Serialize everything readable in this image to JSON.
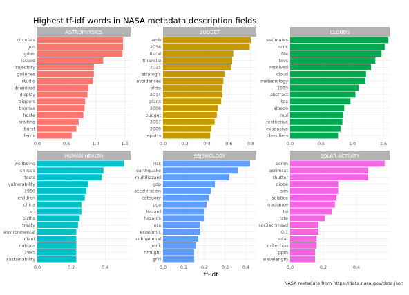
{
  "chart_data": {
    "type": "bar",
    "orientation": "horizontal",
    "title": "Highest tf-idf words in NASA metadata description fields",
    "xlabel": "tf-idf",
    "caption": "NASA metadata from https://data.nasa.gov/data.json",
    "colors": {
      "strip_bg": "#b3b3b3",
      "strip_text": "#ffffff",
      "panel_bg": "#ffffff",
      "grid": "#ebebeb",
      "axis_text": "#4d4d4d",
      "title_text": "#000000"
    },
    "grid": true,
    "facets": [
      {
        "name": "ASTROPHYSICS",
        "color": "#f8766d",
        "xlim": [
          0,
          1.6
        ],
        "ticks": [
          0,
          0.5,
          1.0,
          1.5
        ],
        "tick_labels": [
          "0.0",
          "0.5",
          "1.0",
          "1.5"
        ],
        "categories": [
          "circulars",
          "gcn",
          "grbm",
          "issued",
          "trajectory",
          "galleries",
          "studio",
          "download",
          "display",
          "triggers",
          "thomas",
          "hoste",
          "orbiting",
          "burst",
          "fermi"
        ],
        "values": [
          1.47,
          1.47,
          1.46,
          1.13,
          0.97,
          0.97,
          0.95,
          0.88,
          0.86,
          0.82,
          0.81,
          0.79,
          0.71,
          0.67,
          0.59
        ]
      },
      {
        "name": "BUDGET",
        "color": "#c49a00",
        "xlim": [
          0,
          0.85
        ],
        "ticks": [
          0,
          0.2,
          0.4,
          0.6,
          0.8
        ],
        "tick_labels": [
          "0.0",
          "0.2",
          "0.4",
          "0.6",
          "0.8"
        ],
        "categories": [
          "amb",
          "2016",
          "fiscal",
          "financial",
          "2015",
          "strategic",
          "avoidances",
          "ofcfo",
          "2014",
          "plans",
          "2008",
          "budget",
          "2007",
          "2009",
          "reports"
        ],
        "values": [
          0.8,
          0.79,
          0.64,
          0.63,
          0.62,
          0.56,
          0.55,
          0.54,
          0.54,
          0.53,
          0.5,
          0.49,
          0.47,
          0.44,
          0.43
        ]
      },
      {
        "name": "CLOUDS",
        "color": "#00a94f",
        "xlim": [
          0,
          1.6
        ],
        "ticks": [
          0,
          0.5,
          1.0,
          1.5
        ],
        "tick_labels": [
          "0.0",
          "0.5",
          "1.0",
          "1.5"
        ],
        "categories": [
          "estimates",
          "ncdc",
          "fife",
          "tovs",
          "received",
          "cloud",
          "meteorology",
          "1989",
          "abstract",
          "toa",
          "albedo",
          "mpl",
          "restrictive",
          "expansive",
          "classifiers"
        ],
        "values": [
          1.58,
          1.52,
          1.47,
          1.37,
          1.3,
          1.22,
          1.21,
          1.1,
          1.05,
          0.97,
          0.87,
          0.85,
          0.84,
          0.81,
          0.77
        ]
      },
      {
        "name": "HUMAN HEALTH",
        "color": "#00c0c7",
        "xlim": [
          0,
          0.55
        ],
        "ticks": [
          0,
          0.2,
          0.4
        ],
        "tick_labels": [
          "0.0",
          "0.2",
          "0.4"
        ],
        "categories": [
          "wellbeing",
          "china's",
          "texts",
          "vulnerability",
          "1950",
          "children",
          "china",
          "sci",
          "births",
          "treaty",
          "environmental",
          "infant",
          "nations",
          "1985",
          "sustainability"
        ],
        "values": [
          0.51,
          0.39,
          0.38,
          0.3,
          0.29,
          0.28,
          0.26,
          0.26,
          0.25,
          0.24,
          0.23,
          0.23,
          0.23,
          0.23,
          0.23
        ]
      },
      {
        "name": "SEISMOLOGY",
        "color": "#619cff",
        "xlim": [
          0,
          0.45
        ],
        "ticks": [
          0,
          0.1,
          0.2,
          0.3,
          0.4
        ],
        "tick_labels": [
          "0.0",
          "0.1",
          "0.2",
          "0.3",
          "0.4"
        ],
        "categories": [
          "risk",
          "earthquake",
          "multihazard",
          "gdp",
          "acceleration",
          "category",
          "pga",
          "hazard",
          "hazards",
          "loss",
          "economic",
          "subnational",
          "bank",
          "drought",
          "grid"
        ],
        "values": [
          0.42,
          0.36,
          0.32,
          0.25,
          0.23,
          0.22,
          0.21,
          0.2,
          0.2,
          0.18,
          0.18,
          0.17,
          0.16,
          0.15,
          0.15
        ]
      },
      {
        "name": "SOLAR ACTIVITY",
        "color": "#f564e3",
        "xlim": [
          0,
          0.6
        ],
        "ticks": [
          0,
          0.2,
          0.4
        ],
        "tick_labels": [
          "0.0",
          "0.2",
          "0.4"
        ],
        "categories": [
          "acrim",
          "acrimsat",
          "shutter",
          "diode",
          "sim",
          "solstice",
          "irradiance",
          "tsi",
          "tcte",
          "sor3acrimsvd",
          "0.1",
          "solar",
          "collection",
          "ppm",
          "wavelength"
        ],
        "values": [
          0.57,
          0.47,
          0.47,
          0.29,
          0.29,
          0.28,
          0.27,
          0.25,
          0.21,
          0.17,
          0.17,
          0.16,
          0.16,
          0.15,
          0.15
        ]
      }
    ]
  }
}
